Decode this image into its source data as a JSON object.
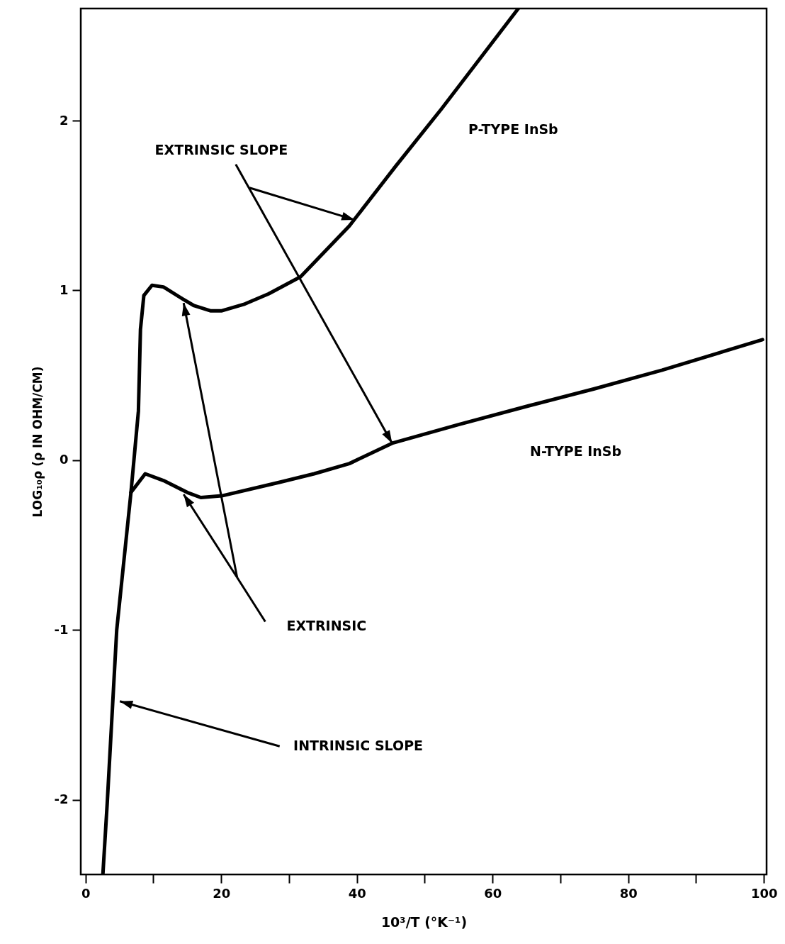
{
  "chart_data": {
    "type": "line",
    "xlabel": "10³/T (°K⁻¹)",
    "ylabel": "LOG₁₀ρ (ρ IN OHM/CM)",
    "xlim": [
      -0.7,
      100.4
    ],
    "ylim": [
      -2.44,
      2.66
    ],
    "xticks": [
      0,
      {
        "value": 10,
        "label": null
      },
      20,
      {
        "value": 30,
        "label": null
      },
      40,
      {
        "value": 50,
        "label": null
      },
      60,
      {
        "value": 70,
        "label": null
      },
      80,
      {
        "value": 90,
        "label": null
      },
      100
    ],
    "yticks": [
      -2,
      -1,
      0,
      1,
      2
    ],
    "series": [
      {
        "name": "P-TYPE InSb",
        "color": "#000000",
        "x": [
          2.56,
          3.2,
          4.6,
          6.7,
          7.8,
          8.1,
          8.6,
          9.8,
          11.5,
          14.3,
          16,
          18.4,
          20.1,
          23.5,
          27,
          31.7,
          38.9,
          45.7,
          52.5,
          59.4,
          63.8
        ],
        "values": [
          -2.44,
          -2.02,
          -1.0,
          -0.19,
          0.29,
          0.77,
          0.97,
          1.03,
          1.02,
          0.95,
          0.91,
          0.88,
          0.88,
          0.92,
          0.98,
          1.08,
          1.38,
          1.73,
          2.07,
          2.43,
          2.66
        ]
      },
      {
        "name": "N-TYPE InSb",
        "color": "#000000",
        "x": [
          6.7,
          8.8,
          11.5,
          15,
          17,
          20.1,
          28.6,
          33.7,
          38.9,
          45.2,
          55,
          65.3,
          75,
          85,
          99.8
        ],
        "values": [
          -0.19,
          -0.08,
          -0.12,
          -0.19,
          -0.22,
          -0.21,
          -0.13,
          -0.08,
          -0.02,
          0.1,
          0.21,
          0.32,
          0.42,
          0.53,
          0.71
        ]
      }
    ],
    "annotations": [
      "EXTRINSIC SLOPE",
      "EXTRINSIC",
      "INTRINSIC SLOPE"
    ]
  }
}
